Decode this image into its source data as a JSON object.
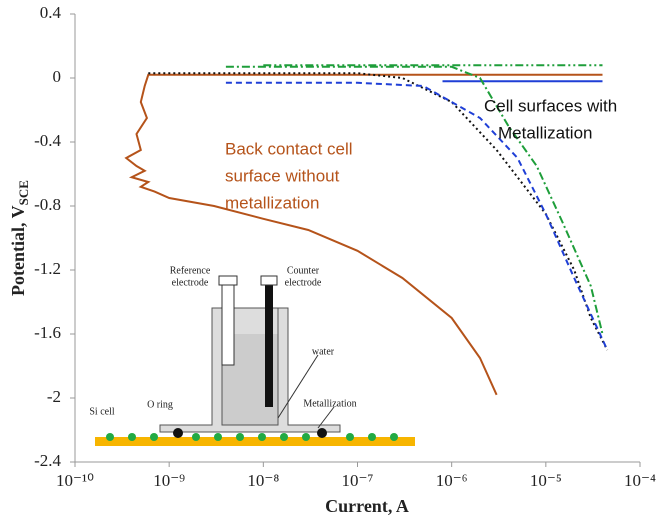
{
  "chart_data": {
    "type": "line",
    "xlabel": "Current, A",
    "ylabel": "Potential, V",
    "ylabel_subscript": "SCE",
    "log_x": true,
    "xlim": [
      1e-10,
      0.0001
    ],
    "xticks": [
      {
        "value": 1e-10,
        "label": "10⁻¹⁰"
      },
      {
        "value": 1e-09,
        "label": "10⁻⁹"
      },
      {
        "value": 1e-08,
        "label": "10⁻⁸"
      },
      {
        "value": 1e-07,
        "label": "10⁻⁷"
      },
      {
        "value": 1e-06,
        "label": "10⁻⁶"
      },
      {
        "value": 1e-05,
        "label": "10⁻⁵"
      },
      {
        "value": 0.0001,
        "label": "10⁻⁴"
      }
    ],
    "ylim": [
      -2.4,
      0.4
    ],
    "yticks": [
      0.4,
      0,
      -0.4,
      -0.8,
      -1.2,
      -1.6,
      -2,
      -2.4
    ],
    "series": [
      {
        "color": "#b5531a",
        "dash": "none",
        "x": [
          4e-05,
          6e-10,
          5.5e-10,
          5e-10,
          5.8e-10,
          4.5e-10,
          5e-10,
          3.5e-10,
          4.5e-10,
          5.5e-10,
          4e-10,
          6e-10,
          5e-10,
          7e-10,
          1e-09,
          3e-09,
          1e-08,
          3e-08,
          1e-07,
          3e-07,
          1e-06,
          2e-06,
          3e-06
        ],
        "values": [
          0.02,
          0.02,
          -0.05,
          -0.15,
          -0.25,
          -0.35,
          -0.45,
          -0.5,
          -0.55,
          -0.58,
          -0.62,
          -0.65,
          -0.68,
          -0.71,
          -0.75,
          -0.8,
          -0.88,
          -0.95,
          -1.08,
          -1.25,
          -1.5,
          -1.75,
          -1.98
        ]
      },
      {
        "color": "#111111",
        "dash": "2 3",
        "x": [
          6e-10,
          1e-07,
          3e-07,
          1e-06,
          3e-06,
          1e-05,
          2e-05,
          3e-05,
          4.5e-05
        ],
        "values": [
          0.03,
          0.03,
          0.0,
          -0.15,
          -0.45,
          -0.85,
          -1.2,
          -1.5,
          -1.7
        ]
      },
      {
        "color": "#1f3fd6",
        "dash": "6 4",
        "x": [
          4e-09,
          1e-07,
          5e-07,
          2e-06,
          5e-06,
          1e-05,
          2e-05,
          4.5e-05
        ],
        "values": [
          -0.03,
          -0.03,
          -0.05,
          -0.25,
          -0.5,
          -0.85,
          -1.25,
          -1.7
        ]
      },
      {
        "color": "#1f3fd6",
        "dash": "none",
        "x": [
          8e-07,
          4e-05
        ],
        "values": [
          -0.02,
          -0.02
        ]
      },
      {
        "color": "#1e9e3a",
        "dash": "8 3 2 3",
        "x": [
          4e-09,
          1e-06,
          2e-06,
          4e-06,
          8e-06,
          1.5e-05,
          3e-05,
          4e-05
        ],
        "values": [
          0.07,
          0.07,
          0.0,
          -0.3,
          -0.55,
          -0.9,
          -1.3,
          -1.6
        ]
      },
      {
        "color": "#1e9e3a",
        "dash": "8 3 2 3 2 3",
        "x": [
          1e-08,
          4e-05
        ],
        "values": [
          0.08,
          0.08
        ]
      }
    ],
    "annotations": [
      {
        "lines": [
          "Back contact cell",
          "surface without",
          "metallization"
        ],
        "color": "#b5531a"
      },
      {
        "lines": [
          "Cell surfaces with",
          "Metallization"
        ],
        "color": "#111111"
      }
    ],
    "inset": {
      "reference": [
        "Reference",
        "electrode"
      ],
      "counter": [
        "Counter",
        "electrode"
      ],
      "water": "water",
      "oring": "O ring",
      "si": "Si cell",
      "metal": "Metallization"
    }
  }
}
